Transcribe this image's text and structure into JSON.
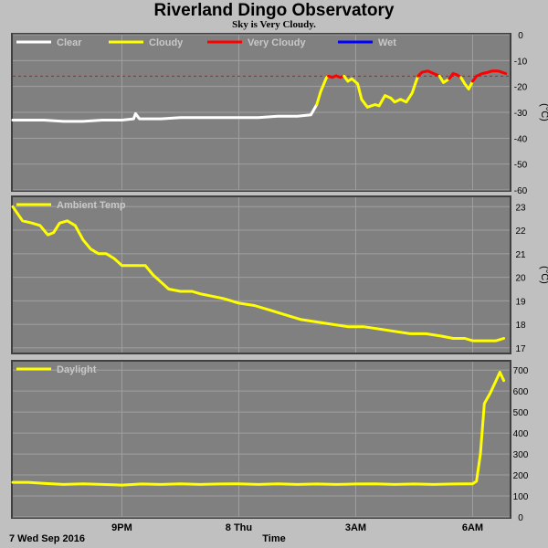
{
  "page": {
    "title": "Riverland Dingo Observatory",
    "subtitle": "Sky is Very Cloudy.",
    "date_label": "7 Wed Sep 2016",
    "x_axis_title": "Time"
  },
  "x_ticks": [
    {
      "label": "9PM",
      "hour": 21
    },
    {
      "label": "8 Thu",
      "hour": 24
    },
    {
      "label": "3AM",
      "hour": 27
    },
    {
      "label": "6AM",
      "hour": 30
    }
  ],
  "chart_data": [
    {
      "id": "sky",
      "type": "line",
      "x_range_hours": [
        18.2,
        30.95
      ],
      "ylim": [
        -60,
        0
      ],
      "yticks": [
        0,
        -10,
        -20,
        -30,
        -40,
        -50,
        -60
      ],
      "ylabel": "(°C)",
      "threshold": -16,
      "legend": [
        {
          "name": "Clear",
          "color": "#ffffff"
        },
        {
          "name": "Cloudy",
          "color": "#ffff00"
        },
        {
          "name": "Very Cloudy",
          "color": "#ff0000"
        },
        {
          "name": "Wet",
          "color": "#0000ff"
        }
      ],
      "series": [
        {
          "name": "Clear",
          "color": "#ffffff",
          "points": [
            [
              18.2,
              -33
            ],
            [
              18.6,
              -33
            ],
            [
              19.0,
              -33
            ],
            [
              19.5,
              -33.5
            ],
            [
              20.0,
              -33.5
            ],
            [
              20.5,
              -33
            ],
            [
              21.0,
              -33
            ],
            [
              21.3,
              -32.5
            ],
            [
              21.35,
              -30.5
            ],
            [
              21.45,
              -32.5
            ],
            [
              22.0,
              -32.5
            ],
            [
              22.5,
              -32
            ],
            [
              23.0,
              -32
            ],
            [
              23.5,
              -32
            ],
            [
              24.0,
              -32
            ],
            [
              24.5,
              -32
            ],
            [
              25.0,
              -31.5
            ],
            [
              25.5,
              -31.5
            ],
            [
              25.85,
              -31
            ],
            [
              26.0,
              -27
            ]
          ]
        },
        {
          "name": "Cloudy",
          "color": "#ffff00",
          "points": [
            [
              26.0,
              -27
            ],
            [
              26.1,
              -22
            ],
            [
              26.25,
              -16.5
            ],
            [
              26.3,
              -16
            ]
          ]
        },
        {
          "name": "Very Cloudy",
          "color": "#ff0000",
          "points": [
            [
              26.3,
              -16
            ],
            [
              26.4,
              -16.5
            ],
            [
              26.5,
              -15.8
            ],
            [
              26.6,
              -16.5
            ],
            [
              26.7,
              -16
            ]
          ]
        },
        {
          "name": "Cloudy",
          "color": "#ffff00",
          "points": [
            [
              26.7,
              -16
            ],
            [
              26.8,
              -18
            ],
            [
              26.9,
              -17
            ],
            [
              27.05,
              -19
            ],
            [
              27.15,
              -25
            ],
            [
              27.3,
              -28
            ],
            [
              27.5,
              -27
            ],
            [
              27.6,
              -27.5
            ],
            [
              27.75,
              -23.5
            ],
            [
              27.9,
              -24.5
            ],
            [
              28.0,
              -26
            ],
            [
              28.15,
              -25
            ],
            [
              28.3,
              -26
            ],
            [
              28.45,
              -22.5
            ],
            [
              28.55,
              -18
            ],
            [
              28.6,
              -16
            ]
          ]
        },
        {
          "name": "Very Cloudy",
          "color": "#ff0000",
          "points": [
            [
              28.6,
              -16
            ],
            [
              28.7,
              -14.5
            ],
            [
              28.85,
              -14
            ],
            [
              29.0,
              -15
            ],
            [
              29.15,
              -16
            ]
          ]
        },
        {
          "name": "Cloudy",
          "color": "#ffff00",
          "points": [
            [
              29.15,
              -16
            ],
            [
              29.25,
              -18.5
            ],
            [
              29.4,
              -17
            ]
          ]
        },
        {
          "name": "Very Cloudy",
          "color": "#ff0000",
          "points": [
            [
              29.4,
              -17
            ],
            [
              29.5,
              -15
            ],
            [
              29.6,
              -15.5
            ],
            [
              29.7,
              -16.5
            ]
          ]
        },
        {
          "name": "Cloudy",
          "color": "#ffff00",
          "points": [
            [
              29.7,
              -16.5
            ],
            [
              29.8,
              -19
            ],
            [
              29.9,
              -21
            ],
            [
              30.0,
              -18
            ]
          ]
        },
        {
          "name": "Very Cloudy",
          "color": "#ff0000",
          "points": [
            [
              30.0,
              -18
            ],
            [
              30.1,
              -16
            ],
            [
              30.25,
              -15
            ],
            [
              30.4,
              -14.5
            ],
            [
              30.5,
              -14
            ],
            [
              30.65,
              -14
            ],
            [
              30.75,
              -14.5
            ],
            [
              30.85,
              -15
            ]
          ]
        }
      ]
    },
    {
      "id": "ambient",
      "type": "line",
      "x_range_hours": [
        18.2,
        30.95
      ],
      "ylim": [
        16.8,
        23.4
      ],
      "yticks": [
        17,
        18,
        19,
        20,
        21,
        22,
        23
      ],
      "ylabel": "(°C)",
      "legend": [
        {
          "name": "Ambient Temp",
          "color": "#ffff00"
        }
      ],
      "series": [
        {
          "name": "Ambient Temp",
          "color": "#ffff00",
          "points": [
            [
              18.2,
              23.0
            ],
            [
              18.45,
              22.4
            ],
            [
              18.7,
              22.3
            ],
            [
              18.9,
              22.2
            ],
            [
              19.1,
              21.8
            ],
            [
              19.25,
              21.9
            ],
            [
              19.4,
              22.3
            ],
            [
              19.6,
              22.4
            ],
            [
              19.8,
              22.2
            ],
            [
              20.0,
              21.6
            ],
            [
              20.2,
              21.2
            ],
            [
              20.4,
              21.0
            ],
            [
              20.6,
              21.0
            ],
            [
              20.8,
              20.8
            ],
            [
              21.0,
              20.5
            ],
            [
              21.3,
              20.5
            ],
            [
              21.6,
              20.5
            ],
            [
              21.8,
              20.1
            ],
            [
              22.0,
              19.8
            ],
            [
              22.2,
              19.5
            ],
            [
              22.5,
              19.4
            ],
            [
              22.8,
              19.4
            ],
            [
              23.0,
              19.3
            ],
            [
              23.3,
              19.2
            ],
            [
              23.6,
              19.1
            ],
            [
              24.0,
              18.9
            ],
            [
              24.4,
              18.8
            ],
            [
              24.8,
              18.6
            ],
            [
              25.2,
              18.4
            ],
            [
              25.6,
              18.2
            ],
            [
              26.0,
              18.1
            ],
            [
              26.4,
              18.0
            ],
            [
              26.8,
              17.9
            ],
            [
              27.2,
              17.9
            ],
            [
              27.6,
              17.8
            ],
            [
              28.0,
              17.7
            ],
            [
              28.4,
              17.6
            ],
            [
              28.8,
              17.6
            ],
            [
              29.2,
              17.5
            ],
            [
              29.5,
              17.4
            ],
            [
              29.8,
              17.4
            ],
            [
              30.0,
              17.3
            ],
            [
              30.3,
              17.3
            ],
            [
              30.6,
              17.3
            ],
            [
              30.8,
              17.4
            ]
          ]
        }
      ]
    },
    {
      "id": "daylight",
      "type": "line",
      "x_range_hours": [
        18.2,
        30.95
      ],
      "ylim": [
        0,
        740
      ],
      "yticks": [
        0,
        100,
        200,
        300,
        400,
        500,
        600,
        700
      ],
      "ylabel": "",
      "legend": [
        {
          "name": "Daylight",
          "color": "#ffff00"
        }
      ],
      "series": [
        {
          "name": "Daylight",
          "color": "#ffff00",
          "points": [
            [
              18.2,
              165
            ],
            [
              18.6,
              165
            ],
            [
              19.0,
              160
            ],
            [
              19.5,
              155
            ],
            [
              20.0,
              158
            ],
            [
              20.5,
              155
            ],
            [
              21.0,
              152
            ],
            [
              21.5,
              157
            ],
            [
              22.0,
              155
            ],
            [
              22.5,
              158
            ],
            [
              23.0,
              155
            ],
            [
              23.5,
              157
            ],
            [
              24.0,
              158
            ],
            [
              24.5,
              155
            ],
            [
              25.0,
              158
            ],
            [
              25.5,
              155
            ],
            [
              26.0,
              157
            ],
            [
              26.5,
              155
            ],
            [
              27.0,
              157
            ],
            [
              27.5,
              158
            ],
            [
              28.0,
              155
            ],
            [
              28.5,
              157
            ],
            [
              29.0,
              155
            ],
            [
              29.5,
              157
            ],
            [
              30.0,
              158
            ],
            [
              30.1,
              170
            ],
            [
              30.2,
              300
            ],
            [
              30.3,
              540
            ],
            [
              30.45,
              590
            ],
            [
              30.6,
              650
            ],
            [
              30.7,
              690
            ],
            [
              30.8,
              650
            ]
          ]
        }
      ]
    }
  ]
}
